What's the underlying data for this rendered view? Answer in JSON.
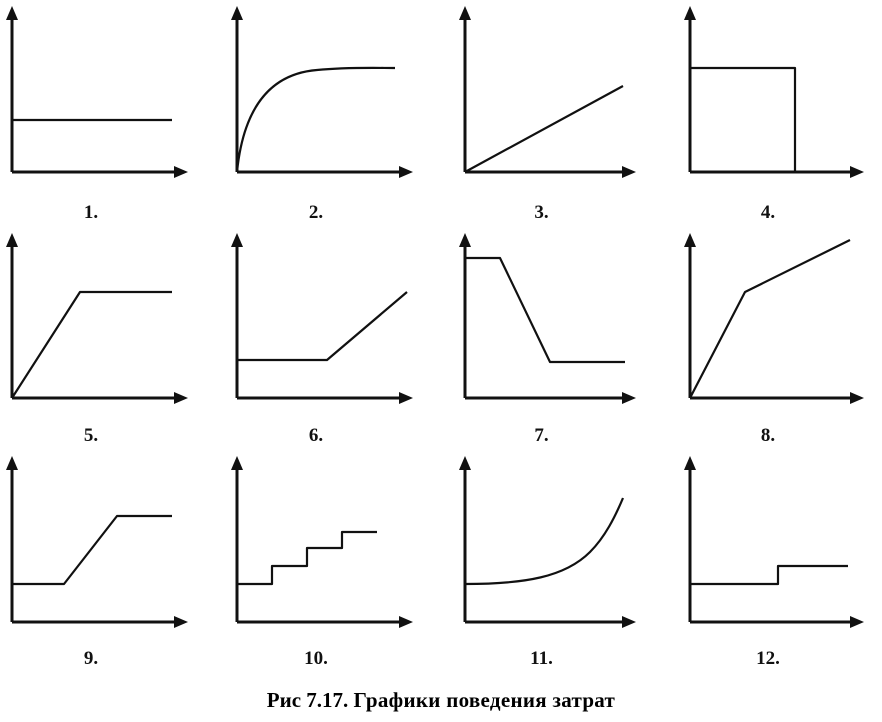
{
  "figure": {
    "panels": [
      {
        "label": "1.",
        "shape": "constant"
      },
      {
        "label": "2.",
        "shape": "concave-saturating"
      },
      {
        "label": "3.",
        "shape": "linear"
      },
      {
        "label": "4.",
        "shape": "step-down"
      },
      {
        "label": "5.",
        "shape": "linear-then-flat"
      },
      {
        "label": "6.",
        "shape": "flat-then-linear"
      },
      {
        "label": "7.",
        "shape": "flat-drop-flat"
      },
      {
        "label": "8.",
        "shape": "piecewise-decreasing-slope"
      },
      {
        "label": "9.",
        "shape": "flat-rise-flat"
      },
      {
        "label": "10.",
        "shape": "staircase"
      },
      {
        "label": "11.",
        "shape": "exponential"
      },
      {
        "label": "12.",
        "shape": "single-step-up"
      }
    ],
    "caption_number": "Рис 7.17.",
    "caption_text": "Графики поведения затрат",
    "stroke_color": "#111111"
  }
}
